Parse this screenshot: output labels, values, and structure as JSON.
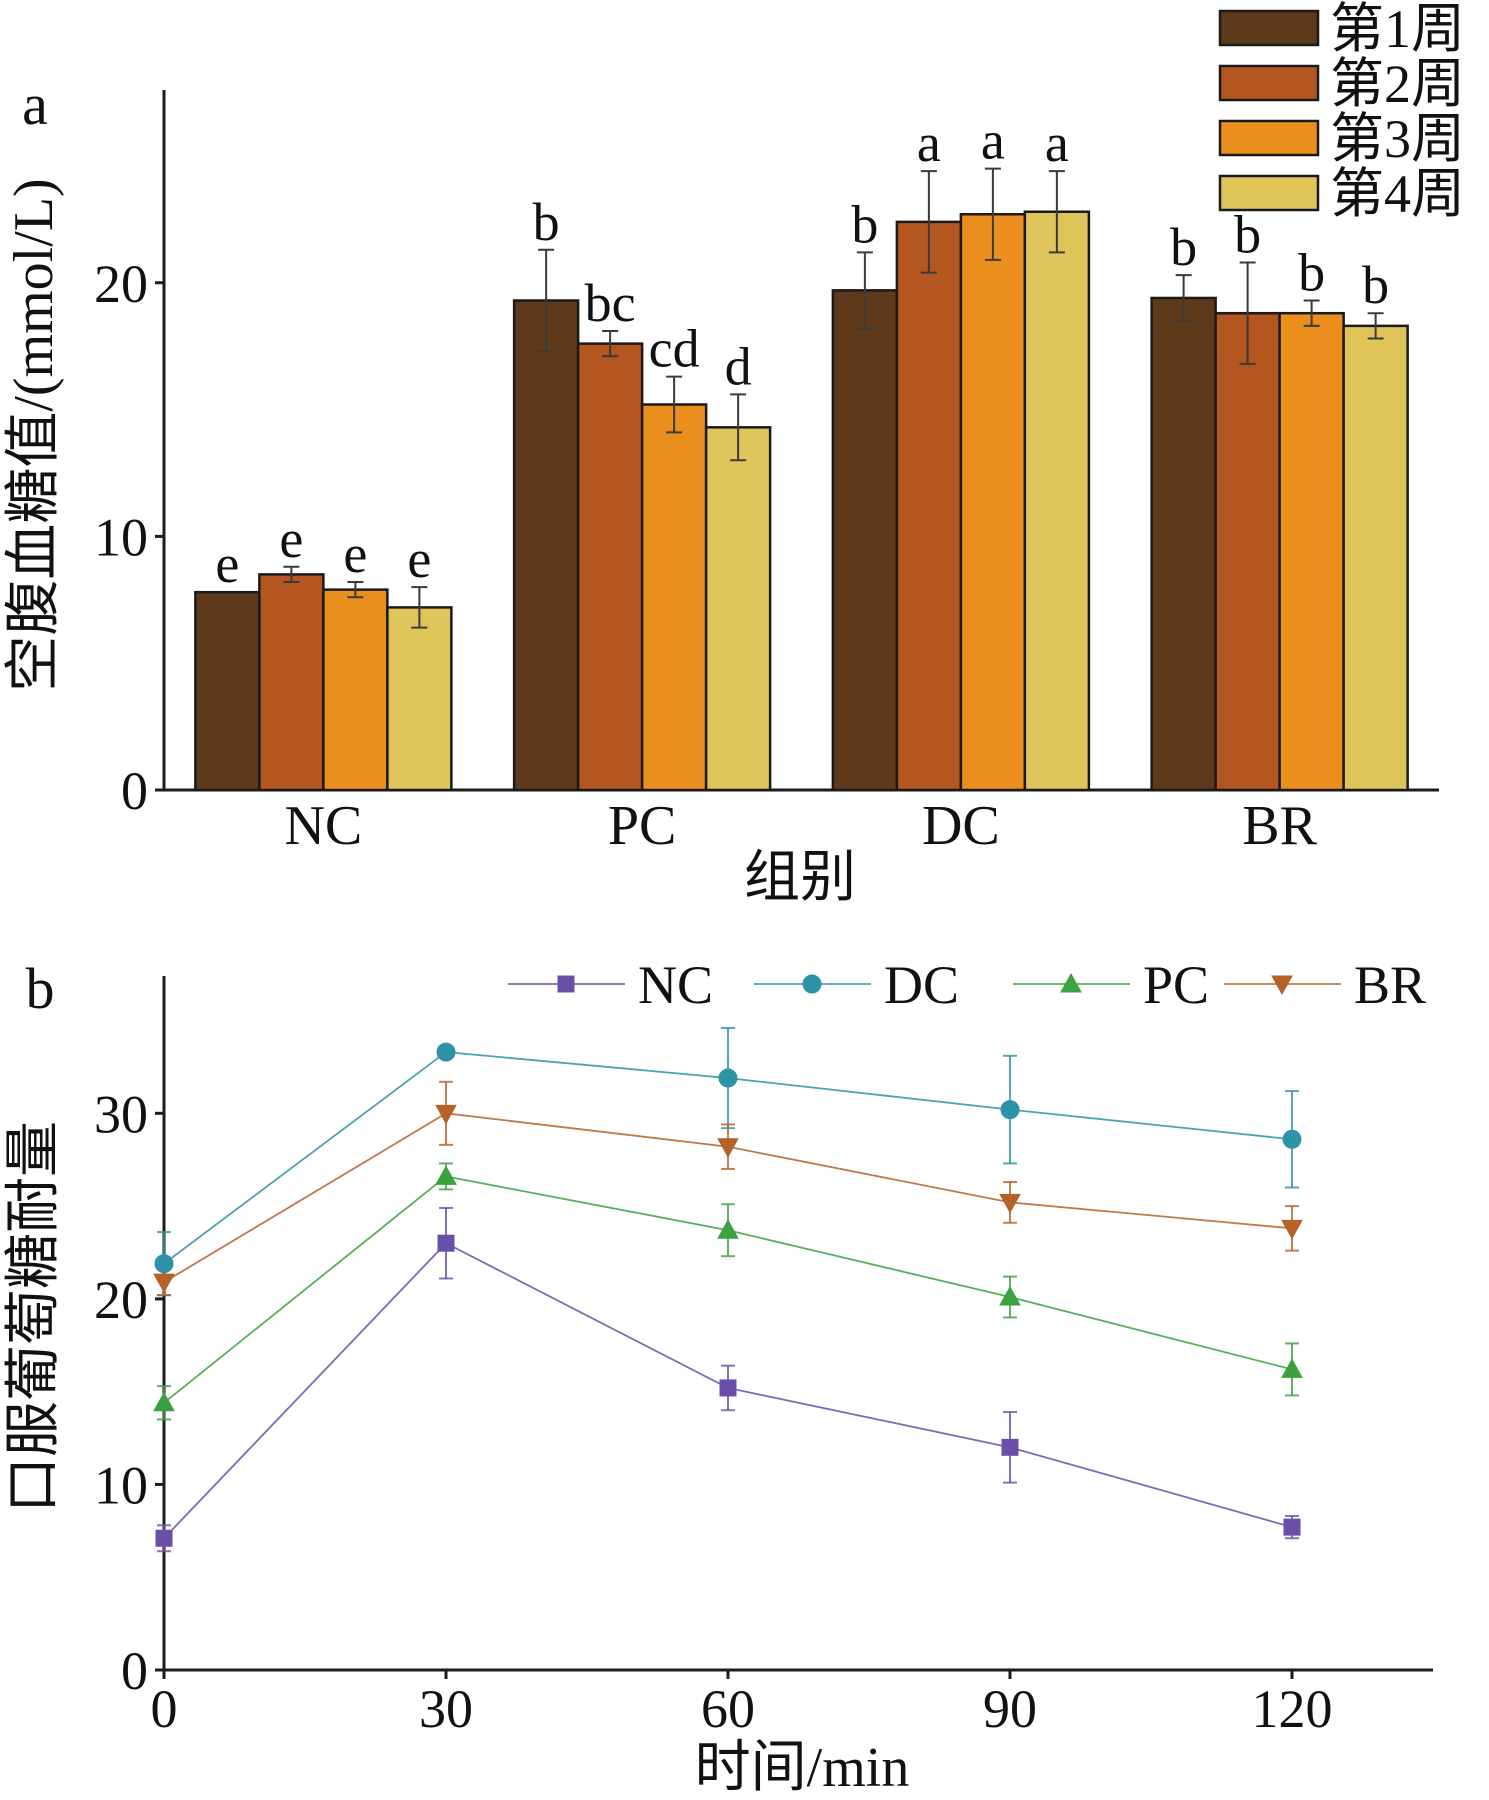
{
  "chart_data": [
    {
      "type": "bar",
      "panel_label": "a",
      "categories": [
        "NC",
        "PC",
        "DC",
        "BR"
      ],
      "xlabel": "组别",
      "ylabel": "空腹血糖值/(mmol/L)",
      "ylim": [
        0,
        27.6
      ],
      "yticks": [
        0,
        10,
        20
      ],
      "grid": false,
      "legend": "top-right",
      "series": [
        {
          "name": "第1周",
          "color": "#5e3a1a",
          "values": [
            7.8,
            19.3,
            19.7,
            19.4
          ],
          "errors": [
            0,
            2.0,
            1.5,
            0.9
          ],
          "labels": [
            "e",
            "b",
            "b",
            "b"
          ]
        },
        {
          "name": "第2周",
          "color": "#b4561f",
          "values": [
            8.5,
            17.6,
            22.4,
            18.8
          ],
          "errors": [
            0.3,
            0.5,
            2.0,
            2.0
          ],
          "labels": [
            "e",
            "bc",
            "a",
            "b"
          ]
        },
        {
          "name": "第3周",
          "color": "#ea8f1e",
          "values": [
            7.9,
            15.2,
            22.7,
            18.8
          ],
          "errors": [
            0.3,
            1.1,
            1.8,
            0.5
          ],
          "labels": [
            "e",
            "cd",
            "a",
            "b"
          ]
        },
        {
          "name": "第4周",
          "color": "#dfc45a",
          "values": [
            7.2,
            14.3,
            22.8,
            18.3
          ],
          "errors": [
            0.8,
            1.3,
            1.6,
            0.5
          ],
          "labels": [
            "e",
            "d",
            "a",
            "b"
          ]
        }
      ]
    },
    {
      "type": "line",
      "panel_label": "b",
      "x": [
        0,
        30,
        60,
        90,
        120
      ],
      "xlabel": "时间/min",
      "ylabel": "口服葡萄糖耐量",
      "xlim": [
        0,
        135
      ],
      "ylim": [
        0,
        37.4
      ],
      "xticks": [
        0,
        30,
        60,
        90,
        120
      ],
      "yticks": [
        0,
        10,
        20,
        30
      ],
      "grid": false,
      "legend": "top",
      "series": [
        {
          "name": "NC",
          "color": "#6a4fa8",
          "marker": "square",
          "values": [
            7.1,
            23.0,
            15.2,
            12.0,
            7.7
          ],
          "errors": [
            0.7,
            1.9,
            1.2,
            1.9,
            0.6
          ]
        },
        {
          "name": "DC",
          "color": "#2e93a6",
          "marker": "circle",
          "values": [
            21.9,
            33.3,
            31.9,
            30.2,
            28.6
          ],
          "errors": [
            1.7,
            0.3,
            2.7,
            2.9,
            2.6
          ]
        },
        {
          "name": "PC",
          "color": "#3aa23e",
          "marker": "triangle-up",
          "values": [
            14.4,
            26.6,
            23.7,
            20.1,
            16.2
          ],
          "errors": [
            0.9,
            0.7,
            1.4,
            1.1,
            1.4
          ]
        },
        {
          "name": "BR",
          "color": "#b5612a",
          "marker": "triangle-down",
          "values": [
            20.9,
            30.0,
            28.2,
            25.2,
            23.8
          ],
          "errors": [
            0.7,
            1.7,
            1.2,
            1.1,
            1.2
          ]
        }
      ]
    }
  ]
}
